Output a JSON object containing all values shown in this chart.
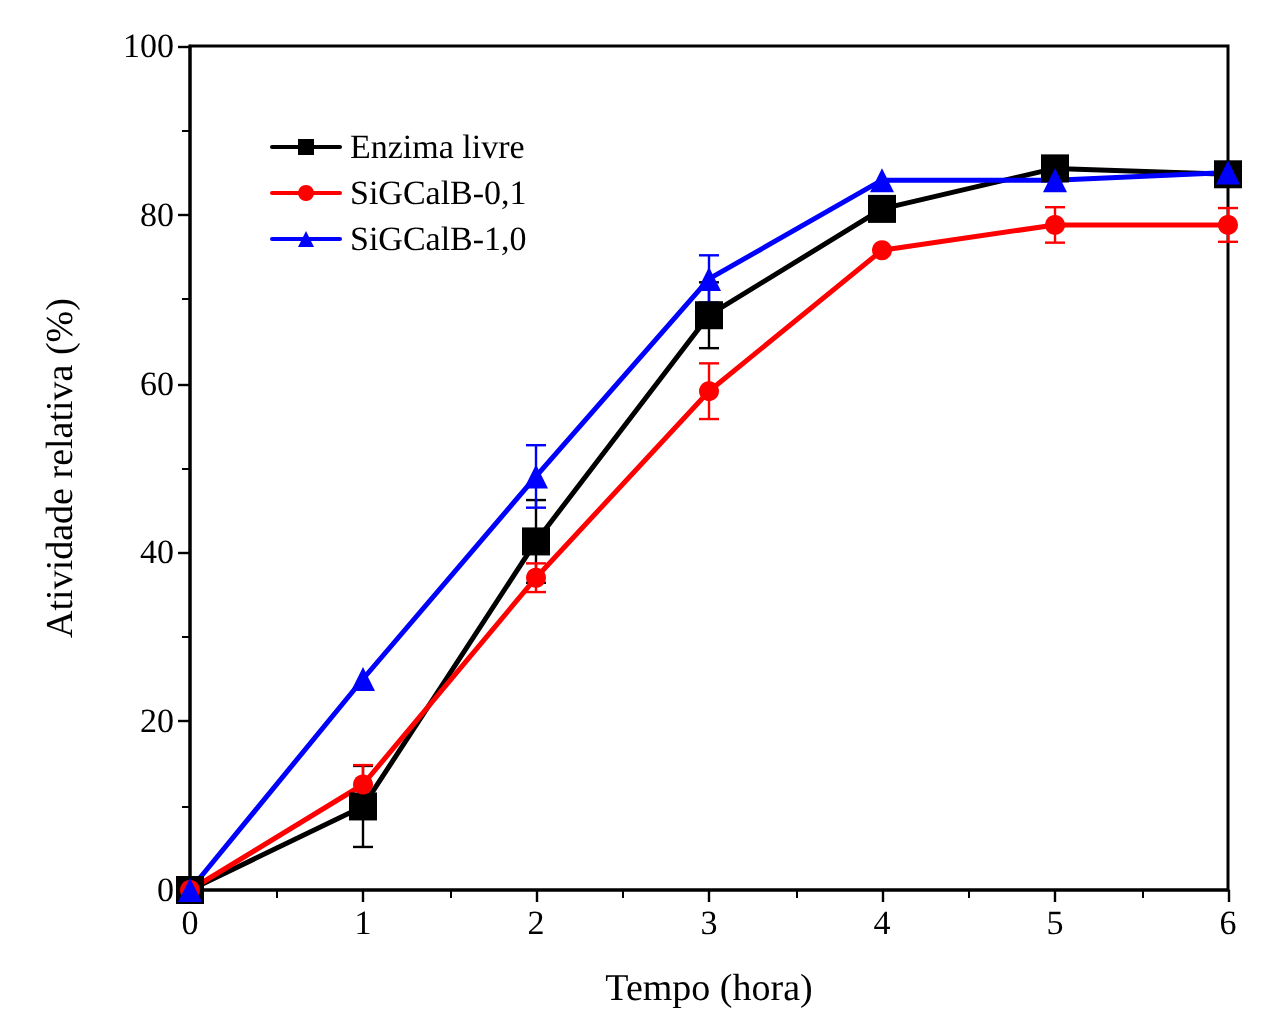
{
  "chart_data": {
    "type": "line",
    "xlabel": "Tempo (hora)",
    "ylabel": "Atividade relativa (%)",
    "x": [
      0,
      1,
      2,
      3,
      4,
      5,
      6
    ],
    "series": [
      {
        "name": "Enzima livre",
        "color": "#000000",
        "marker": "square",
        "values": [
          0,
          9.9,
          41.3,
          68.1,
          80.7,
          85.5,
          84.8
        ],
        "errors": [
          null,
          4.8,
          4.9,
          3.9,
          1,
          null,
          null
        ]
      },
      {
        "name": "SiGCalB-0,1",
        "color": "#ff0000",
        "marker": "circle",
        "values": [
          0,
          12.5,
          37,
          59.1,
          75.8,
          78.8,
          78.8
        ],
        "errors": [
          null,
          2.3,
          1.7,
          3.3,
          null,
          2.1,
          2
        ]
      },
      {
        "name": "SiGCalB-1,0",
        "color": "#0000ff",
        "marker": "triangle",
        "values": [
          0,
          25,
          49,
          72.4,
          84.1,
          84.1,
          85
        ],
        "errors": [
          null,
          null,
          3.7,
          2.8,
          null,
          null,
          null
        ]
      }
    ],
    "xlim": [
      0,
      6
    ],
    "xticks": [
      0,
      1,
      2,
      3,
      4,
      5,
      6
    ],
    "ylim": [
      0,
      100
    ],
    "yticks": [
      0,
      20,
      40,
      60,
      80,
      100
    ],
    "grid": false,
    "legend": "top left",
    "line_style": "solid"
  }
}
